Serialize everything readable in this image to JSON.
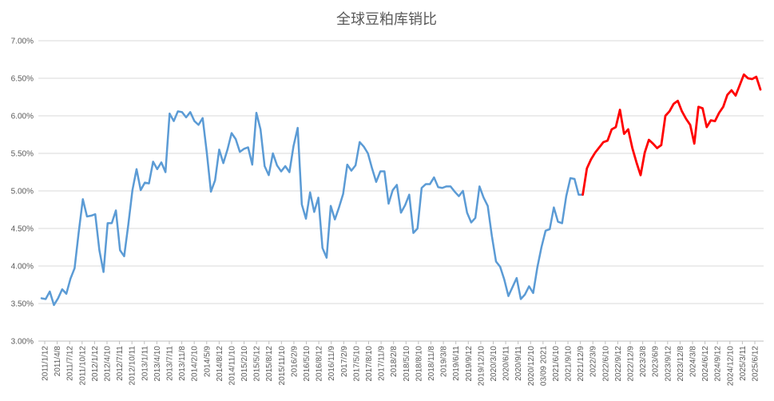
{
  "chart_data": {
    "type": "line",
    "title": "全球豆粕库销比",
    "xlabel": "",
    "ylabel": "",
    "ylim": [
      3.0,
      7.0
    ],
    "yticks": [
      "3.00%",
      "3.50%",
      "4.00%",
      "4.50%",
      "5.00%",
      "5.50%",
      "6.00%",
      "6.50%",
      "7.00%"
    ],
    "grid": true,
    "legend": "none",
    "x_tick_labels": [
      "2011/1/12",
      "2011/4/8",
      "2011/7/12",
      "2011/10/12",
      "2012/1/12",
      "2012/4/10",
      "2012/7/11",
      "2012/10/11",
      "2013/1/11",
      "2013/4/10",
      "2013/7/11",
      "2013/11/8",
      "2014/2/10",
      "2014/5/9",
      "2014/8/12",
      "2014/11/10",
      "2015/2/10",
      "2015/5/12",
      "2015/8/12",
      "2015/11/10",
      "2016/2/9",
      "2016/5/10",
      "2016/8/12",
      "2016/11/9",
      "2017/2/9",
      "2017/5/10",
      "2017/8/10",
      "2017/11/9",
      "2018/2/8",
      "2018/5/10",
      "2018/8/10",
      "2018/11/8",
      "2019/3/8",
      "2019/6/11",
      "2019/9/12",
      "2019/12/10",
      "2020/3/10",
      "2020/6/11",
      "2020/9/11",
      "2020/12/10",
      "03/09 2021",
      "2021/6/10",
      "2021/9/10",
      "2021/12/9",
      "2022/3/9",
      "2022/6/10",
      "2022/9/12",
      "2022/12/9",
      "2023/3/8",
      "2023/6/9",
      "2023/9/12",
      "2023/12/8",
      "2024/3/8",
      "2024/6/12",
      "2024/9/12",
      "2024/12/10",
      "2025/3/11",
      "2025/6/12"
    ],
    "series": [
      {
        "color": "#5b9bd5",
        "values": [
          3.57,
          3.56,
          3.66,
          3.48,
          3.57,
          3.69,
          3.63,
          3.83,
          3.97,
          4.45,
          4.89,
          4.66,
          4.67,
          4.69,
          4.21,
          3.92,
          4.57,
          4.57,
          4.74,
          4.21,
          4.13,
          4.55,
          5.01,
          5.29,
          5.01,
          5.11,
          5.1,
          5.39,
          5.29,
          5.38,
          5.25,
          6.03,
          5.93,
          6.06,
          6.05,
          5.98,
          6.05,
          5.93,
          5.88,
          5.97,
          5.51,
          4.99,
          5.14,
          5.55,
          5.37,
          5.55,
          5.77,
          5.69,
          5.52,
          5.56,
          5.58,
          5.35,
          6.04,
          5.82,
          5.33,
          5.21,
          5.5,
          5.34,
          5.26,
          5.33,
          5.25,
          5.6,
          5.84,
          4.82,
          4.63,
          4.98,
          4.72,
          4.91,
          4.24,
          4.11,
          4.8,
          4.62,
          4.78,
          4.96,
          5.35,
          5.27,
          5.34,
          5.65,
          5.59,
          5.5,
          5.3,
          5.12,
          5.26,
          5.26,
          4.83,
          5.01,
          5.08,
          4.71,
          4.81,
          4.95,
          4.44,
          4.5,
          5.04,
          5.09,
          5.09,
          5.18,
          5.05,
          5.04,
          5.06,
          5.06,
          4.99,
          4.93,
          5.0,
          4.71,
          4.58,
          4.64,
          5.06,
          4.91,
          4.8,
          4.4,
          4.06,
          3.99,
          3.82,
          3.6,
          3.72,
          3.84,
          3.56,
          3.62,
          3.73,
          3.64,
          3.98,
          4.25,
          4.47,
          4.49,
          4.78,
          4.59,
          4.57,
          4.93,
          5.17,
          5.16,
          4.95,
          4.95
        ]
      },
      {
        "color": "#ff0000",
        "start_index": 131,
        "values": [
          4.95,
          5.3,
          5.42,
          5.51,
          5.58,
          5.65,
          5.67,
          5.82,
          5.85,
          6.08,
          5.76,
          5.82,
          5.57,
          5.38,
          5.21,
          5.51,
          5.68,
          5.63,
          5.57,
          5.61,
          6.0,
          6.06,
          6.16,
          6.2,
          6.06,
          5.96,
          5.88,
          5.63,
          6.12,
          6.1,
          5.85,
          5.94,
          5.93,
          6.04,
          6.12,
          6.28,
          6.34,
          6.27,
          6.41,
          6.55,
          6.5,
          6.49,
          6.52,
          6.35
        ]
      }
    ]
  }
}
